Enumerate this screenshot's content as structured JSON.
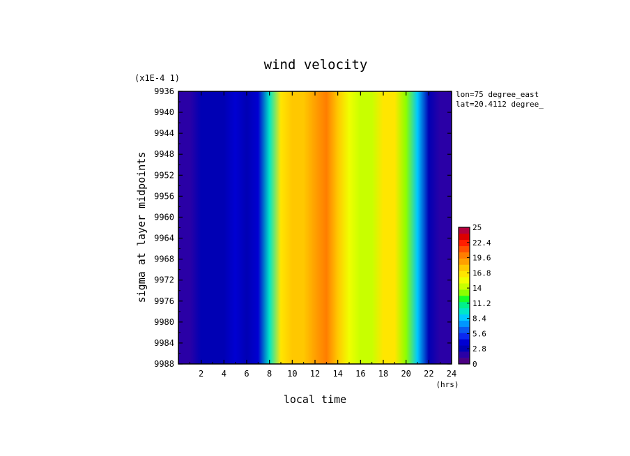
{
  "chart_data": {
    "type": "heatmap",
    "title": "wind velocity",
    "xlabel": "local time",
    "xunit": "(hrs)",
    "ylabel": "sigma at layer midpoints",
    "y_scale_note": "(x1E-4 1)",
    "xlim": [
      0,
      24
    ],
    "x_ticks": [
      2,
      4,
      6,
      8,
      10,
      12,
      14,
      16,
      18,
      20,
      22,
      24
    ],
    "ylim": [
      9936,
      9988
    ],
    "y_ticks": [
      9936,
      9940,
      9944,
      9948,
      9952,
      9956,
      9960,
      9964,
      9968,
      9972,
      9976,
      9980,
      9984,
      9988
    ],
    "annotations": [
      "lon=75 degree_east",
      "lat=20.4112 degree_"
    ],
    "colorbar": {
      "range": [
        0,
        25
      ],
      "tick_labels": [
        "25",
        "22.4",
        "19.6",
        "16.8",
        "14",
        "11.2",
        "8.4",
        "5.6",
        "2.8",
        "0"
      ],
      "colors": [
        "#4b0082",
        "#2a00a6",
        "#0000b4",
        "#0000d2",
        "#0a28f0",
        "#0a5af0",
        "#0096ff",
        "#00c8ff",
        "#00e6c8",
        "#00f08c",
        "#14ff28",
        "#8cff00",
        "#c8ff00",
        "#f0ff00",
        "#ffe600",
        "#ffc800",
        "#ffa000",
        "#ff7d00",
        "#ff5000",
        "#ff1e00",
        "#dc0000",
        "#b4003c"
      ]
    },
    "values_by_local_time": [
      {
        "x": 0,
        "value": 2.0
      },
      {
        "x": 1,
        "value": 2.0
      },
      {
        "x": 2,
        "value": 2.5
      },
      {
        "x": 3,
        "value": 2.5
      },
      {
        "x": 4,
        "value": 3.0
      },
      {
        "x": 5,
        "value": 3.5
      },
      {
        "x": 6,
        "value": 3.0
      },
      {
        "x": 7,
        "value": 4.5
      },
      {
        "x": 8,
        "value": 10.0
      },
      {
        "x": 9,
        "value": 16.0
      },
      {
        "x": 10,
        "value": 17.5
      },
      {
        "x": 11,
        "value": 18.0
      },
      {
        "x": 12,
        "value": 18.5
      },
      {
        "x": 13,
        "value": 19.5
      },
      {
        "x": 14,
        "value": 18.0
      },
      {
        "x": 15,
        "value": 15.5
      },
      {
        "x": 16,
        "value": 14.0
      },
      {
        "x": 17,
        "value": 14.5
      },
      {
        "x": 18,
        "value": 16.0
      },
      {
        "x": 19,
        "value": 16.5
      },
      {
        "x": 20,
        "value": 13.5
      },
      {
        "x": 21,
        "value": 8.0
      },
      {
        "x": 22,
        "value": 3.0
      },
      {
        "x": 23,
        "value": 2.0
      },
      {
        "x": 24,
        "value": 2.0
      }
    ]
  }
}
